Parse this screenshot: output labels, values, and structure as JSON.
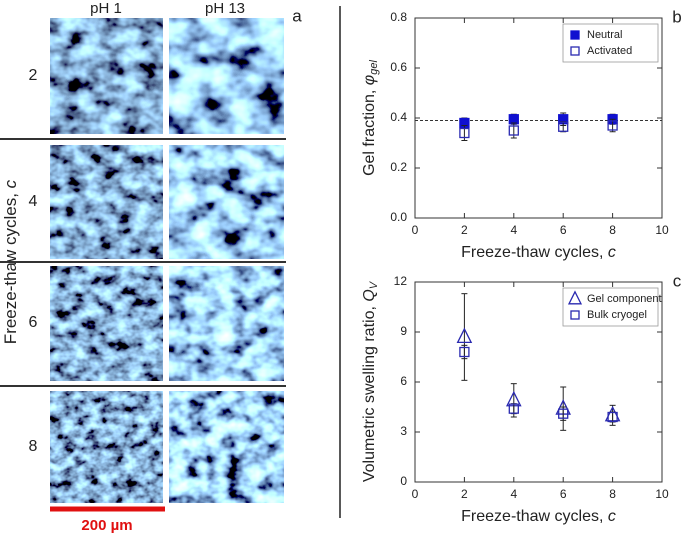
{
  "panel_a": {
    "label": "a",
    "columns": [
      "pH 1",
      "pH 13"
    ],
    "rows": [
      "2",
      "4",
      "6",
      "8"
    ],
    "ylabel": {
      "text": "Freeze-thaw cycles, ",
      "symbol": "c"
    },
    "scale_bar": "200 µm"
  },
  "chart_data": [
    {
      "type": "scatter",
      "panel_label": "b",
      "xlabel": {
        "text": "Freeze-thaw cycles, ",
        "symbol": "c"
      },
      "ylabel": {
        "text": "Gel fraction, ",
        "symbol": "φ",
        "sub": "gel"
      },
      "x": [
        2,
        4,
        6,
        8
      ],
      "series": [
        {
          "name": "Neutral",
          "color": "#1010d0",
          "marker": "square",
          "filled": true,
          "values": [
            0.38,
            0.395,
            0.395,
            0.395
          ],
          "errors": [
            0.02,
            0.02,
            0.025,
            0.02
          ]
        },
        {
          "name": "Activated",
          "color": "#2a2ab0",
          "marker": "square",
          "filled": false,
          "values": [
            0.34,
            0.35,
            0.365,
            0.37
          ],
          "errors": [
            0.03,
            0.03,
            0.02,
            0.025
          ]
        }
      ],
      "reference_line": 0.39,
      "xlim": [
        0,
        10
      ],
      "xticks": [
        0,
        2,
        4,
        6,
        8,
        10
      ],
      "ylim": [
        0,
        0.8
      ],
      "yticks": [
        {
          "value": 0,
          "label": "0.0"
        },
        0.2,
        0.4,
        0.6,
        0.8
      ],
      "legend": "upper right"
    },
    {
      "type": "scatter",
      "panel_label": "c",
      "xlabel": {
        "text": "Freeze-thaw cycles, ",
        "symbol": "c"
      },
      "ylabel": {
        "text": "Volumetric swelling ratio, ",
        "symbol": "Q",
        "sub": "V"
      },
      "x": [
        2,
        4,
        6,
        8
      ],
      "series": [
        {
          "name": "Gel component",
          "color": "#2a2ab0",
          "marker": "triangle",
          "filled": false,
          "values": [
            8.7,
            4.9,
            4.4,
            4.0
          ],
          "errors": [
            2.6,
            1.0,
            1.3,
            0.6
          ]
        },
        {
          "name": "Bulk cryogel",
          "color": "#2a2ab0",
          "marker": "square",
          "filled": false,
          "values": [
            7.8,
            4.4,
            4.1,
            3.9
          ],
          "errors": [
            0.4,
            0.3,
            0.4,
            0.3
          ]
        }
      ],
      "xlim": [
        0,
        10
      ],
      "xticks": [
        0,
        2,
        4,
        6,
        8,
        10
      ],
      "ylim": [
        0,
        12
      ],
      "yticks": [
        0,
        3,
        6,
        9,
        12
      ],
      "legend": "upper right"
    }
  ]
}
